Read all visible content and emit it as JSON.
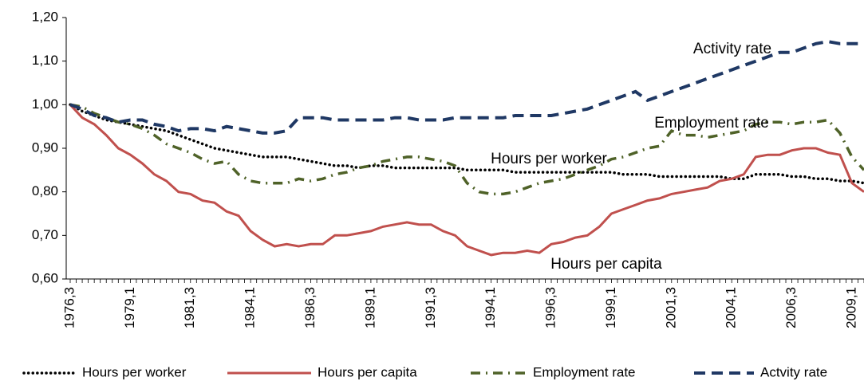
{
  "chart_data": {
    "type": "line",
    "categories": [
      "1976,3",
      null,
      null,
      null,
      null,
      "1979,1",
      null,
      null,
      null,
      null,
      "1981,3",
      null,
      null,
      null,
      null,
      "1984,1",
      null,
      null,
      null,
      null,
      "1986,3",
      null,
      null,
      null,
      null,
      "1989,1",
      null,
      null,
      null,
      null,
      "1991,3",
      null,
      null,
      null,
      null,
      "1994,1",
      null,
      null,
      null,
      null,
      "1996,3",
      null,
      null,
      null,
      null,
      "1999,1",
      null,
      null,
      null,
      null,
      "2001,3",
      null,
      null,
      null,
      null,
      "2004,1",
      null,
      null,
      null,
      null,
      "2006,3",
      null,
      null,
      null,
      null,
      "2009,1",
      null
    ],
    "series": [
      {
        "name": "Hours per worker",
        "color": "#000000",
        "style": "dotted",
        "values": [
          1.0,
          0.985,
          0.975,
          0.965,
          0.96,
          0.955,
          0.95,
          0.945,
          0.94,
          0.93,
          0.92,
          0.91,
          0.9,
          0.895,
          0.89,
          0.885,
          0.88,
          0.88,
          0.88,
          0.875,
          0.87,
          0.865,
          0.86,
          0.86,
          0.855,
          0.86,
          0.86,
          0.855,
          0.855,
          0.855,
          0.855,
          0.855,
          0.855,
          0.85,
          0.85,
          0.85,
          0.85,
          0.845,
          0.845,
          0.845,
          0.845,
          0.845,
          0.845,
          0.845,
          0.845,
          0.845,
          0.84,
          0.84,
          0.84,
          0.835,
          0.835,
          0.835,
          0.835,
          0.835,
          0.835,
          0.83,
          0.83,
          0.84,
          0.84,
          0.84,
          0.835,
          0.835,
          0.83,
          0.83,
          0.825,
          0.825,
          0.82
        ]
      },
      {
        "name": "Hours per capita",
        "color": "#c0504d",
        "style": "solid",
        "values": [
          1.0,
          0.97,
          0.955,
          0.93,
          0.9,
          0.885,
          0.865,
          0.84,
          0.825,
          0.8,
          0.795,
          0.78,
          0.775,
          0.755,
          0.745,
          0.71,
          0.69,
          0.675,
          0.68,
          0.675,
          0.68,
          0.68,
          0.7,
          0.7,
          0.705,
          0.71,
          0.72,
          0.725,
          0.73,
          0.725,
          0.725,
          0.71,
          0.7,
          0.675,
          0.665,
          0.655,
          0.66,
          0.66,
          0.665,
          0.66,
          0.68,
          0.685,
          0.695,
          0.7,
          0.72,
          0.75,
          0.76,
          0.77,
          0.78,
          0.785,
          0.795,
          0.8,
          0.805,
          0.81,
          0.825,
          0.83,
          0.84,
          0.88,
          0.885,
          0.885,
          0.895,
          0.9,
          0.9,
          0.89,
          0.885,
          0.82,
          0.8
        ]
      },
      {
        "name": "Employment rate",
        "color": "#4f6228",
        "style": "dashdot",
        "values": [
          1.0,
          0.995,
          0.98,
          0.97,
          0.96,
          0.955,
          0.945,
          0.93,
          0.91,
          0.9,
          0.89,
          0.875,
          0.865,
          0.87,
          0.84,
          0.825,
          0.82,
          0.82,
          0.82,
          0.83,
          0.825,
          0.83,
          0.84,
          0.845,
          0.855,
          0.86,
          0.87,
          0.875,
          0.88,
          0.88,
          0.875,
          0.87,
          0.86,
          0.82,
          0.8,
          0.795,
          0.795,
          0.8,
          0.81,
          0.82,
          0.825,
          0.83,
          0.84,
          0.85,
          0.86,
          0.875,
          0.88,
          0.89,
          0.9,
          0.905,
          0.94,
          0.93,
          0.93,
          0.925,
          0.93,
          0.935,
          0.94,
          0.955,
          0.96,
          0.96,
          0.955,
          0.96,
          0.96,
          0.965,
          0.935,
          0.88,
          0.85
        ]
      },
      {
        "name": "Actvity rate",
        "color": "#1f3864",
        "style": "dashed",
        "values": [
          1.0,
          0.99,
          0.975,
          0.97,
          0.96,
          0.965,
          0.965,
          0.955,
          0.95,
          0.94,
          0.945,
          0.945,
          0.94,
          0.95,
          0.945,
          0.94,
          0.935,
          0.935,
          0.94,
          0.97,
          0.97,
          0.97,
          0.965,
          0.965,
          0.965,
          0.965,
          0.965,
          0.97,
          0.97,
          0.965,
          0.965,
          0.965,
          0.97,
          0.97,
          0.97,
          0.97,
          0.97,
          0.975,
          0.975,
          0.975,
          0.975,
          0.98,
          0.985,
          0.99,
          1.0,
          1.01,
          1.02,
          1.03,
          1.01,
          1.02,
          1.03,
          1.04,
          1.05,
          1.06,
          1.07,
          1.08,
          1.09,
          1.1,
          1.11,
          1.12,
          1.12,
          1.13,
          1.14,
          1.145,
          1.14,
          1.14,
          1.14
        ]
      }
    ],
    "ylim": [
      0.6,
      1.2
    ],
    "yticks": [
      {
        "value": 0.6,
        "label": "0,60"
      },
      {
        "value": 0.7,
        "label": "0,70"
      },
      {
        "value": 0.8,
        "label": "0,80"
      },
      {
        "value": 0.9,
        "label": "0,90"
      },
      {
        "value": 1.0,
        "label": "1,00"
      },
      {
        "value": 1.1,
        "label": "1,10"
      },
      {
        "value": 1.2,
        "label": "1,20"
      }
    ],
    "grid": false,
    "legend": "bottom",
    "annotations": [
      {
        "text": "Activity rate",
        "color": "#1f3864"
      },
      {
        "text": "Employment rate",
        "color": "#4f6228"
      },
      {
        "text": "Hours per worker",
        "color": "#000000"
      },
      {
        "text": "Hours per capita",
        "color": "#7f2a28"
      }
    ]
  }
}
